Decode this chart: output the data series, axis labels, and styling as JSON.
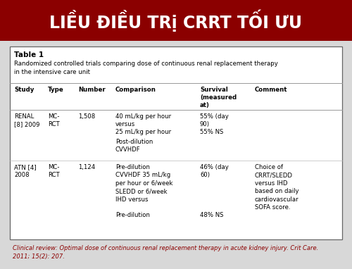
{
  "title": "LIỀU ĐIỀU TRị CRRT TỐI ƯU",
  "title_bg": "#8B0000",
  "title_color": "#FFFFFF",
  "bg_color": "#D8D8D8",
  "table_title": "Table 1",
  "table_subtitle": "Randomized controlled trials comparing dose of continuous renal replacement therapy\nin the intensive care unit",
  "headers": [
    "Study",
    "Type",
    "Number",
    "Comparison",
    "Survival\n(measured\nat)",
    "Comment"
  ],
  "footnote": "Clinical review: Optimal dose of continuous renal replacement therapy in acute kidney injury. Crit Care.\n2011; 15(2): 207.",
  "footnote_color": "#8B0000"
}
